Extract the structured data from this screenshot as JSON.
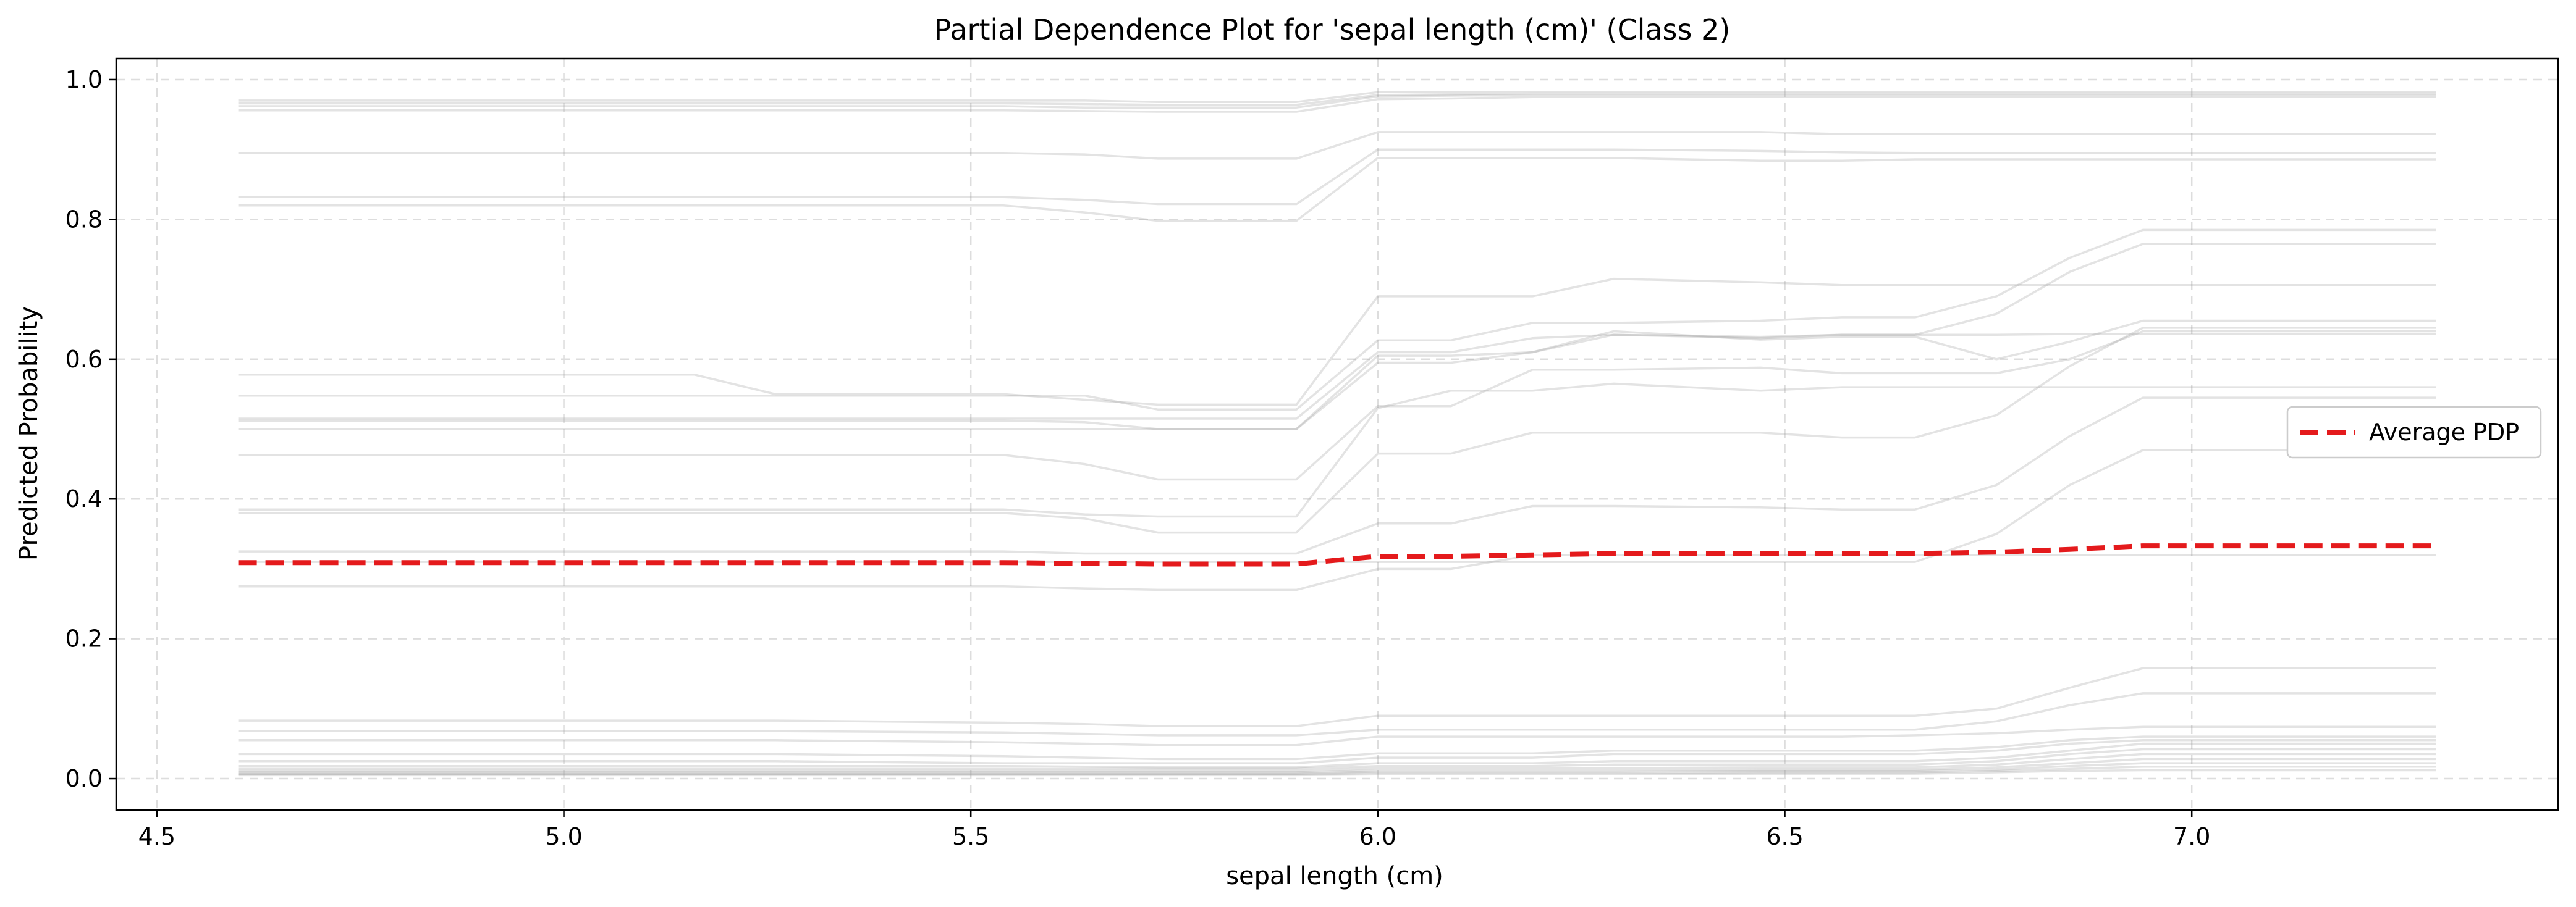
{
  "chart_data": {
    "type": "line",
    "title": "Partial Dependence Plot for 'sepal length (cm)' (Class 2)",
    "xlabel": "sepal length (cm)",
    "ylabel": "Predicted Probability",
    "xlim": [
      4.45,
      7.45
    ],
    "ylim": [
      -0.045,
      1.03
    ],
    "xticks": [
      4.5,
      5.0,
      5.5,
      6.0,
      6.5,
      7.0
    ],
    "yticks": [
      0.0,
      0.2,
      0.4,
      0.6,
      0.8,
      1.0
    ],
    "xtick_labels": [
      "4.5",
      "5.0",
      "5.5",
      "6.0",
      "6.5",
      "7.0"
    ],
    "ytick_labels": [
      "0.0",
      "0.2",
      "0.4",
      "0.6",
      "0.8",
      "1.0"
    ],
    "grid": true,
    "legend_position": "center-right",
    "x": [
      4.6,
      5.16,
      5.26,
      5.54,
      5.64,
      5.73,
      5.9,
      6.0,
      6.09,
      6.19,
      6.29,
      6.47,
      6.57,
      6.66,
      6.76,
      6.85,
      6.94,
      7.3
    ],
    "series": [
      {
        "name": "Average PDP",
        "color": "#e41a1c",
        "style": "dashed",
        "values": [
          0.309,
          0.309,
          0.309,
          0.309,
          0.308,
          0.307,
          0.307,
          0.318,
          0.318,
          0.32,
          0.322,
          0.322,
          0.322,
          0.322,
          0.324,
          0.328,
          0.333,
          0.333
        ]
      }
    ],
    "ice_color": "#9a9a9a",
    "ice_lines": [
      [
        0.97,
        0.97,
        0.97,
        0.97,
        0.97,
        0.968,
        0.968,
        0.982,
        0.982,
        0.982,
        0.982,
        0.982,
        0.982,
        0.982,
        0.982,
        0.982,
        0.982,
        0.982
      ],
      [
        0.966,
        0.966,
        0.966,
        0.966,
        0.965,
        0.964,
        0.964,
        0.978,
        0.979,
        0.98,
        0.98,
        0.98,
        0.98,
        0.98,
        0.98,
        0.98,
        0.98,
        0.98
      ],
      [
        0.962,
        0.962,
        0.962,
        0.962,
        0.96,
        0.96,
        0.96,
        0.976,
        0.977,
        0.978,
        0.978,
        0.978,
        0.978,
        0.978,
        0.978,
        0.978,
        0.978,
        0.978
      ],
      [
        0.956,
        0.956,
        0.956,
        0.956,
        0.955,
        0.954,
        0.954,
        0.972,
        0.973,
        0.975,
        0.975,
        0.975,
        0.975,
        0.975,
        0.975,
        0.975,
        0.975,
        0.975
      ],
      [
        0.895,
        0.895,
        0.895,
        0.895,
        0.893,
        0.887,
        0.887,
        0.925,
        0.925,
        0.925,
        0.925,
        0.925,
        0.922,
        0.922,
        0.922,
        0.922,
        0.922,
        0.922
      ],
      [
        0.832,
        0.832,
        0.832,
        0.832,
        0.828,
        0.822,
        0.822,
        0.9,
        0.9,
        0.9,
        0.9,
        0.898,
        0.896,
        0.895,
        0.895,
        0.895,
        0.895,
        0.895
      ],
      [
        0.82,
        0.82,
        0.82,
        0.82,
        0.81,
        0.798,
        0.798,
        0.888,
        0.888,
        0.888,
        0.888,
        0.884,
        0.884,
        0.886,
        0.886,
        0.886,
        0.886,
        0.886
      ],
      [
        0.578,
        0.578,
        0.55,
        0.55,
        0.542,
        0.535,
        0.535,
        0.69,
        0.69,
        0.69,
        0.715,
        0.71,
        0.706,
        0.706,
        0.706,
        0.706,
        0.706,
        0.706
      ],
      [
        0.548,
        0.548,
        0.548,
        0.548,
        0.548,
        0.528,
        0.528,
        0.627,
        0.627,
        0.652,
        0.652,
        0.655,
        0.66,
        0.66,
        0.69,
        0.745,
        0.785,
        0.785
      ],
      [
        0.515,
        0.515,
        0.515,
        0.515,
        0.515,
        0.515,
        0.515,
        0.61,
        0.61,
        0.63,
        0.635,
        0.63,
        0.635,
        0.635,
        0.665,
        0.725,
        0.765,
        0.765
      ],
      [
        0.512,
        0.512,
        0.512,
        0.512,
        0.51,
        0.5,
        0.5,
        0.605,
        0.605,
        0.61,
        0.64,
        0.628,
        0.632,
        0.632,
        0.6,
        0.625,
        0.655,
        0.655
      ],
      [
        0.5,
        0.5,
        0.5,
        0.5,
        0.5,
        0.5,
        0.5,
        0.595,
        0.595,
        0.61,
        0.635,
        0.632,
        0.635,
        0.635,
        0.635,
        0.636,
        0.636,
        0.636
      ],
      [
        0.463,
        0.463,
        0.463,
        0.463,
        0.45,
        0.428,
        0.428,
        0.533,
        0.533,
        0.585,
        0.585,
        0.588,
        0.58,
        0.58,
        0.58,
        0.6,
        0.64,
        0.64
      ],
      [
        0.385,
        0.385,
        0.385,
        0.385,
        0.378,
        0.375,
        0.375,
        0.53,
        0.555,
        0.555,
        0.565,
        0.555,
        0.56,
        0.56,
        0.56,
        0.56,
        0.56,
        0.56
      ],
      [
        0.38,
        0.38,
        0.38,
        0.38,
        0.372,
        0.352,
        0.352,
        0.465,
        0.465,
        0.495,
        0.495,
        0.495,
        0.488,
        0.488,
        0.52,
        0.59,
        0.645,
        0.645
      ],
      [
        0.325,
        0.325,
        0.325,
        0.325,
        0.322,
        0.322,
        0.322,
        0.365,
        0.365,
        0.39,
        0.39,
        0.388,
        0.385,
        0.385,
        0.42,
        0.49,
        0.545,
        0.545
      ],
      [
        0.31,
        0.31,
        0.31,
        0.31,
        0.31,
        0.31,
        0.31,
        0.31,
        0.31,
        0.31,
        0.31,
        0.31,
        0.31,
        0.31,
        0.35,
        0.42,
        0.47,
        0.47
      ],
      [
        0.275,
        0.275,
        0.275,
        0.275,
        0.272,
        0.27,
        0.27,
        0.3,
        0.3,
        0.32,
        0.32,
        0.32,
        0.32,
        0.32,
        0.32,
        0.32,
        0.32,
        0.32
      ],
      [
        0.083,
        0.083,
        0.083,
        0.08,
        0.078,
        0.075,
        0.075,
        0.09,
        0.09,
        0.09,
        0.09,
        0.09,
        0.09,
        0.09,
        0.1,
        0.13,
        0.158,
        0.158
      ],
      [
        0.068,
        0.068,
        0.068,
        0.066,
        0.064,
        0.062,
        0.062,
        0.07,
        0.07,
        0.07,
        0.07,
        0.07,
        0.07,
        0.07,
        0.082,
        0.105,
        0.122,
        0.122
      ],
      [
        0.055,
        0.055,
        0.055,
        0.052,
        0.05,
        0.048,
        0.048,
        0.06,
        0.06,
        0.06,
        0.06,
        0.06,
        0.06,
        0.062,
        0.065,
        0.07,
        0.074,
        0.074
      ],
      [
        0.035,
        0.035,
        0.035,
        0.032,
        0.03,
        0.028,
        0.028,
        0.036,
        0.036,
        0.036,
        0.04,
        0.04,
        0.04,
        0.04,
        0.045,
        0.055,
        0.06,
        0.06
      ],
      [
        0.025,
        0.025,
        0.025,
        0.022,
        0.022,
        0.022,
        0.022,
        0.03,
        0.03,
        0.03,
        0.035,
        0.035,
        0.035,
        0.035,
        0.04,
        0.05,
        0.055,
        0.055
      ],
      [
        0.018,
        0.018,
        0.018,
        0.018,
        0.017,
        0.016,
        0.016,
        0.022,
        0.022,
        0.022,
        0.025,
        0.025,
        0.025,
        0.025,
        0.03,
        0.04,
        0.05,
        0.05
      ],
      [
        0.014,
        0.014,
        0.014,
        0.014,
        0.014,
        0.014,
        0.014,
        0.018,
        0.018,
        0.018,
        0.02,
        0.02,
        0.02,
        0.02,
        0.025,
        0.035,
        0.042,
        0.042
      ],
      [
        0.011,
        0.011,
        0.011,
        0.011,
        0.011,
        0.011,
        0.011,
        0.015,
        0.015,
        0.015,
        0.015,
        0.016,
        0.016,
        0.016,
        0.02,
        0.028,
        0.035,
        0.035
      ],
      [
        0.009,
        0.009,
        0.009,
        0.009,
        0.009,
        0.009,
        0.009,
        0.012,
        0.012,
        0.012,
        0.012,
        0.013,
        0.013,
        0.013,
        0.016,
        0.022,
        0.028,
        0.028
      ],
      [
        0.007,
        0.007,
        0.007,
        0.007,
        0.007,
        0.007,
        0.007,
        0.01,
        0.01,
        0.01,
        0.01,
        0.011,
        0.011,
        0.011,
        0.013,
        0.018,
        0.022,
        0.022
      ],
      [
        0.006,
        0.006,
        0.006,
        0.006,
        0.006,
        0.006,
        0.006,
        0.008,
        0.008,
        0.008,
        0.008,
        0.009,
        0.009,
        0.009,
        0.011,
        0.014,
        0.017,
        0.017
      ],
      [
        0.005,
        0.005,
        0.005,
        0.005,
        0.005,
        0.005,
        0.005,
        0.006,
        0.006,
        0.006,
        0.006,
        0.007,
        0.007,
        0.007,
        0.009,
        0.011,
        0.012,
        0.012
      ]
    ]
  }
}
